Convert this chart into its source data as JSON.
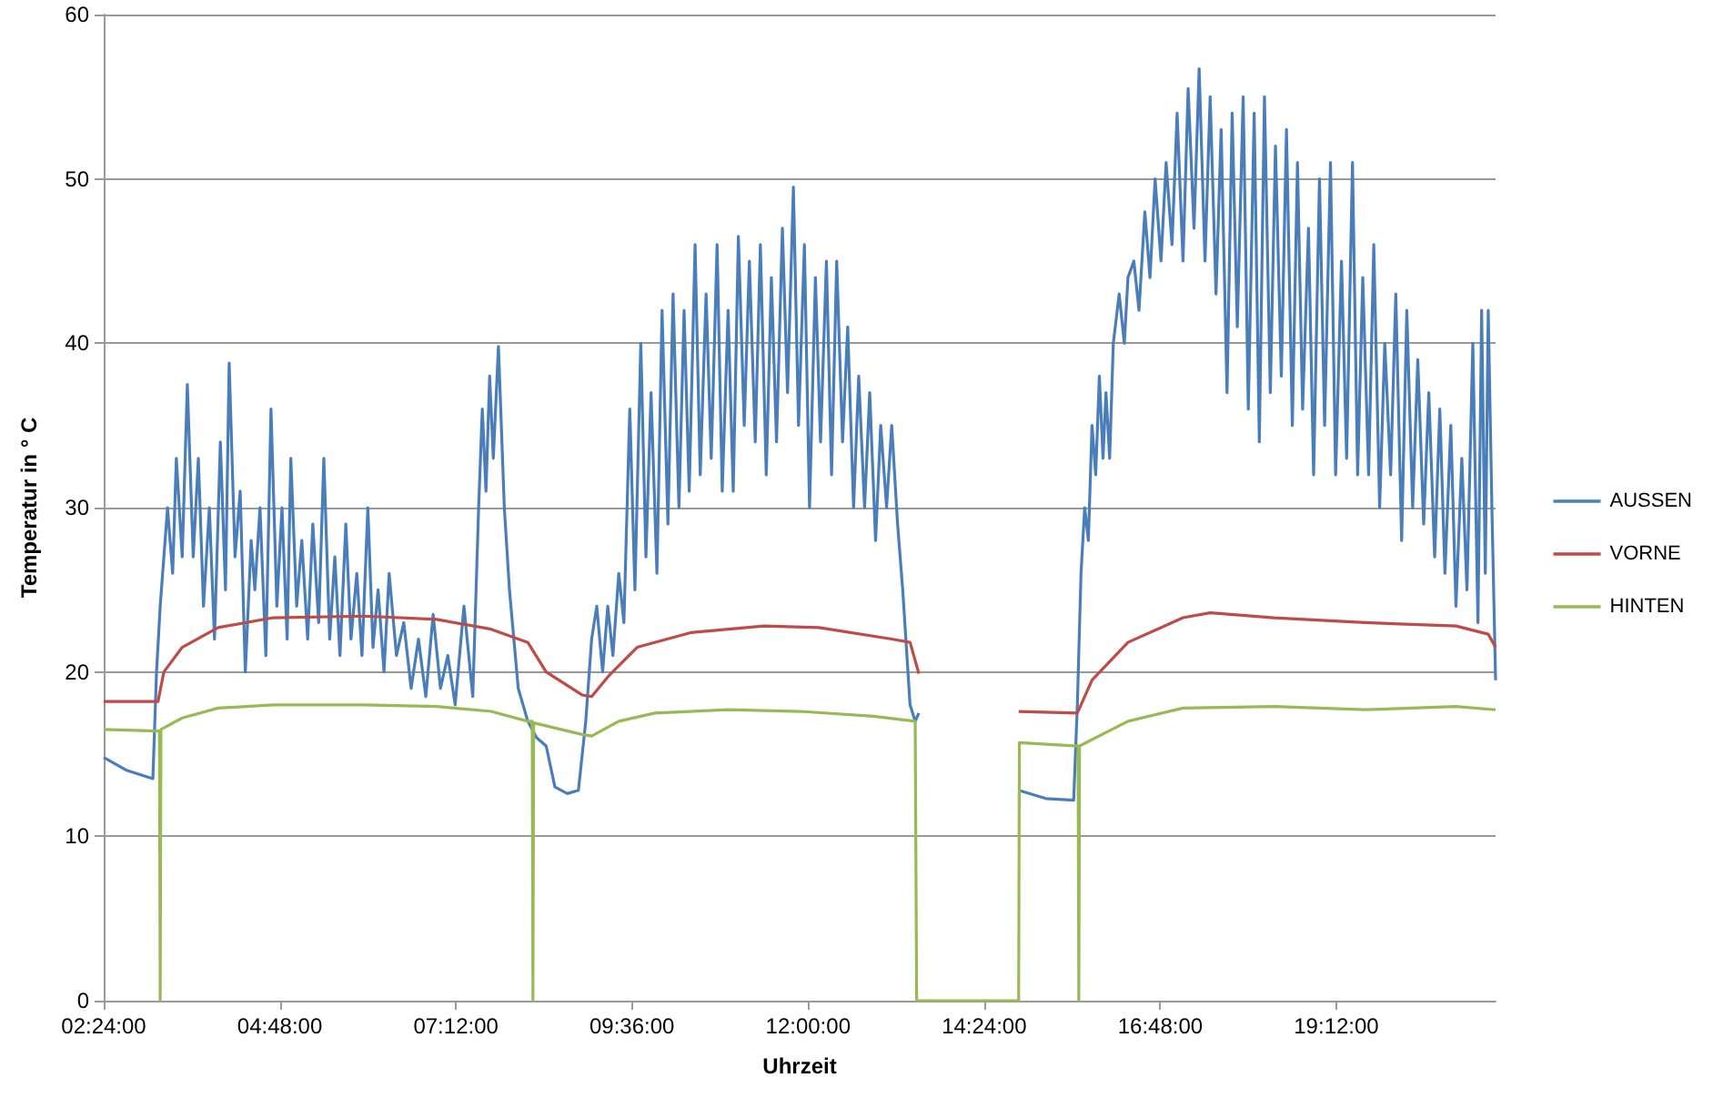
{
  "chart_data": {
    "type": "line",
    "xlabel": "Uhrzeit",
    "ylabel": "Temperatur in ° C",
    "xlim": [
      2.4,
      21.37
    ],
    "ylim": [
      0,
      60
    ],
    "xticks": [
      {
        "value": 2.4,
        "label": "02:24:00"
      },
      {
        "value": 4.8,
        "label": "04:48:00"
      },
      {
        "value": 7.2,
        "label": "07:12:00"
      },
      {
        "value": 9.6,
        "label": "09:36:00"
      },
      {
        "value": 12,
        "label": "12:00:00"
      },
      {
        "value": 14.4,
        "label": "14:24:00"
      },
      {
        "value": 16.8,
        "label": "16:48:00"
      },
      {
        "value": 19.2,
        "label": "19:12:00"
      }
    ],
    "yticks": [
      0,
      10,
      20,
      30,
      40,
      50,
      60
    ],
    "grid": "y",
    "legend": "right",
    "marker": "none",
    "line_style": "solid",
    "series": [
      {
        "name": "AUSSEN",
        "color": "#4a7ebb",
        "x": [
          2.4,
          2.72,
          3.07,
          3.12,
          3.17,
          3.27,
          3.34,
          3.39,
          3.47,
          3.54,
          3.62,
          3.69,
          3.76,
          3.84,
          3.91,
          3.99,
          4.06,
          4.11,
          4.19,
          4.26,
          4.33,
          4.41,
          4.46,
          4.53,
          4.61,
          4.68,
          4.76,
          4.83,
          4.9,
          4.95,
          5.03,
          5.1,
          5.18,
          5.25,
          5.33,
          5.4,
          5.48,
          5.55,
          5.62,
          5.7,
          5.77,
          5.85,
          5.92,
          6.0,
          6.07,
          6.14,
          6.22,
          6.29,
          6.39,
          6.49,
          6.59,
          6.69,
          6.79,
          6.89,
          6.99,
          7.09,
          7.19,
          7.31,
          7.43,
          7.51,
          7.56,
          7.61,
          7.66,
          7.71,
          7.78,
          7.86,
          7.93,
          8.05,
          8.18,
          8.3,
          8.43,
          8.55,
          8.72,
          8.87,
          8.97,
          9.05,
          9.12,
          9.2,
          9.27,
          9.34,
          9.42,
          9.49,
          9.57,
          9.64,
          9.72,
          9.79,
          9.86,
          9.94,
          10.01,
          10.09,
          10.16,
          10.24,
          10.31,
          10.38,
          10.46,
          10.53,
          10.61,
          10.68,
          10.76,
          10.83,
          10.91,
          10.98,
          11.05,
          11.13,
          11.2,
          11.28,
          11.35,
          11.43,
          11.5,
          11.57,
          11.65,
          11.72,
          11.8,
          11.87,
          11.95,
          12.02,
          12.1,
          12.17,
          12.25,
          12.32,
          12.39,
          12.47,
          12.54,
          12.62,
          12.69,
          12.77,
          12.84,
          12.92,
          12.99,
          13.07,
          13.14,
          13.22,
          13.29,
          13.39,
          13.46,
          13.51,
          14.0,
          14.87,
          15.24,
          15.62,
          15.67,
          15.72,
          15.77,
          15.82,
          15.87,
          15.92,
          15.97,
          16.02,
          16.06,
          16.11,
          16.16,
          16.24,
          16.31,
          16.36,
          16.44,
          16.51,
          16.59,
          16.66,
          16.73,
          16.81,
          16.88,
          16.96,
          17.03,
          17.11,
          17.18,
          17.26,
          17.33,
          17.41,
          17.48,
          17.56,
          17.63,
          17.71,
          17.78,
          17.85,
          17.93,
          18.0,
          18.08,
          18.15,
          18.22,
          18.3,
          18.37,
          18.45,
          18.52,
          18.6,
          18.67,
          18.74,
          18.82,
          18.89,
          18.97,
          19.04,
          19.12,
          19.19,
          19.27,
          19.34,
          19.42,
          19.49,
          19.56,
          19.64,
          19.71,
          19.79,
          19.86,
          19.94,
          20.01,
          20.09,
          20.16,
          20.24,
          20.31,
          20.39,
          20.46,
          20.54,
          20.61,
          20.68,
          20.76,
          20.83,
          20.91,
          20.98,
          21.06,
          21.13,
          21.18,
          21.23,
          21.27,
          21.32,
          21.37
        ],
        "values": [
          14.8,
          14.0,
          13.5,
          20,
          24,
          30,
          26,
          33,
          27,
          37.5,
          27,
          33,
          24,
          30,
          22,
          34,
          25,
          38.8,
          27,
          31,
          20,
          28,
          25,
          30,
          21,
          36,
          24,
          30,
          22,
          33,
          24,
          28,
          22,
          29,
          23,
          33,
          22,
          27,
          21,
          29,
          22,
          26,
          21,
          30,
          21.5,
          25,
          20,
          26,
          21,
          23,
          19,
          22,
          18.5,
          23.5,
          19,
          21,
          18,
          24,
          18.5,
          30,
          36,
          31,
          38,
          33,
          39.8,
          30,
          25,
          19,
          17,
          16,
          15.5,
          13,
          12.6,
          12.8,
          17,
          22,
          24,
          20,
          24,
          21,
          26,
          23,
          36,
          25,
          40,
          27,
          37,
          26,
          42,
          29,
          43,
          30,
          42,
          31,
          46,
          32,
          43,
          33,
          46,
          31,
          42,
          31,
          46.5,
          35,
          45,
          34,
          46,
          32,
          44,
          34,
          47,
          37,
          49.5,
          35,
          46,
          30,
          44,
          34,
          45,
          32,
          45,
          34,
          41,
          30,
          38,
          30,
          37,
          28,
          35,
          30,
          35,
          29,
          25,
          18,
          17,
          17.5,
          null,
          12.8,
          12.3,
          12.2,
          18,
          26,
          30,
          28,
          35,
          32,
          38,
          33,
          37,
          33,
          40,
          43,
          40,
          44,
          45,
          42,
          48,
          44,
          50,
          45,
          51,
          46,
          54,
          45,
          55.5,
          47,
          56.7,
          45,
          55,
          43,
          53,
          37,
          54,
          41,
          55,
          36,
          54,
          34,
          55,
          37,
          52,
          38,
          53,
          35,
          51,
          36,
          47,
          32,
          50,
          35,
          51,
          32,
          45,
          33,
          51,
          32,
          44,
          32,
          46,
          30,
          40,
          32,
          43,
          28,
          42,
          30,
          39,
          29,
          37,
          27,
          36,
          26,
          35,
          24,
          33,
          25,
          40,
          23,
          42,
          26,
          42,
          30,
          19.5
        ]
      },
      {
        "name": "VORNE",
        "color": "#be4b48",
        "x": [
          2.4,
          3.14,
          3.22,
          3.47,
          3.96,
          4.71,
          5.95,
          6.94,
          7.68,
          8.18,
          8.43,
          8.92,
          9.05,
          9.29,
          9.67,
          10.41,
          11.4,
          12.15,
          13.14,
          13.39,
          13.51,
          14.0,
          14.87,
          15.67,
          15.87,
          16.36,
          17.11,
          17.48,
          18.35,
          19.59,
          20.83,
          21.27,
          21.37
        ],
        "values": [
          18.2,
          18.2,
          20,
          21.5,
          22.7,
          23.3,
          23.4,
          23.2,
          22.6,
          21.8,
          20.0,
          18.6,
          18.5,
          19.8,
          21.5,
          22.4,
          22.8,
          22.7,
          22.0,
          21.8,
          19.9,
          null,
          17.6,
          17.5,
          19.5,
          21.8,
          23.3,
          23.6,
          23.3,
          23.0,
          22.8,
          22.3,
          21.5
        ]
      },
      {
        "name": "HINTEN",
        "color": "#98b954",
        "x": [
          2.4,
          3.14,
          3.16,
          3.17,
          3.18,
          3.47,
          3.96,
          4.71,
          5.95,
          6.94,
          7.68,
          8.18,
          8.24,
          8.25,
          8.26,
          8.92,
          9.05,
          9.42,
          9.91,
          10.91,
          11.9,
          12.89,
          13.46,
          13.48,
          14.87,
          14.88,
          15.62,
          15.68,
          15.69,
          15.7,
          16.36,
          17.11,
          18.35,
          19.59,
          20.83,
          21.37
        ],
        "values": [
          16.5,
          16.4,
          16.4,
          0,
          16.5,
          17.2,
          17.8,
          18.0,
          18.0,
          17.9,
          17.6,
          17.0,
          17.0,
          0,
          16.9,
          16.2,
          16.1,
          17.0,
          17.5,
          17.7,
          17.6,
          17.3,
          17.0,
          0,
          0,
          15.7,
          15.5,
          15.5,
          0,
          15.5,
          17.0,
          17.8,
          17.9,
          17.7,
          17.9,
          17.7
        ]
      }
    ]
  }
}
